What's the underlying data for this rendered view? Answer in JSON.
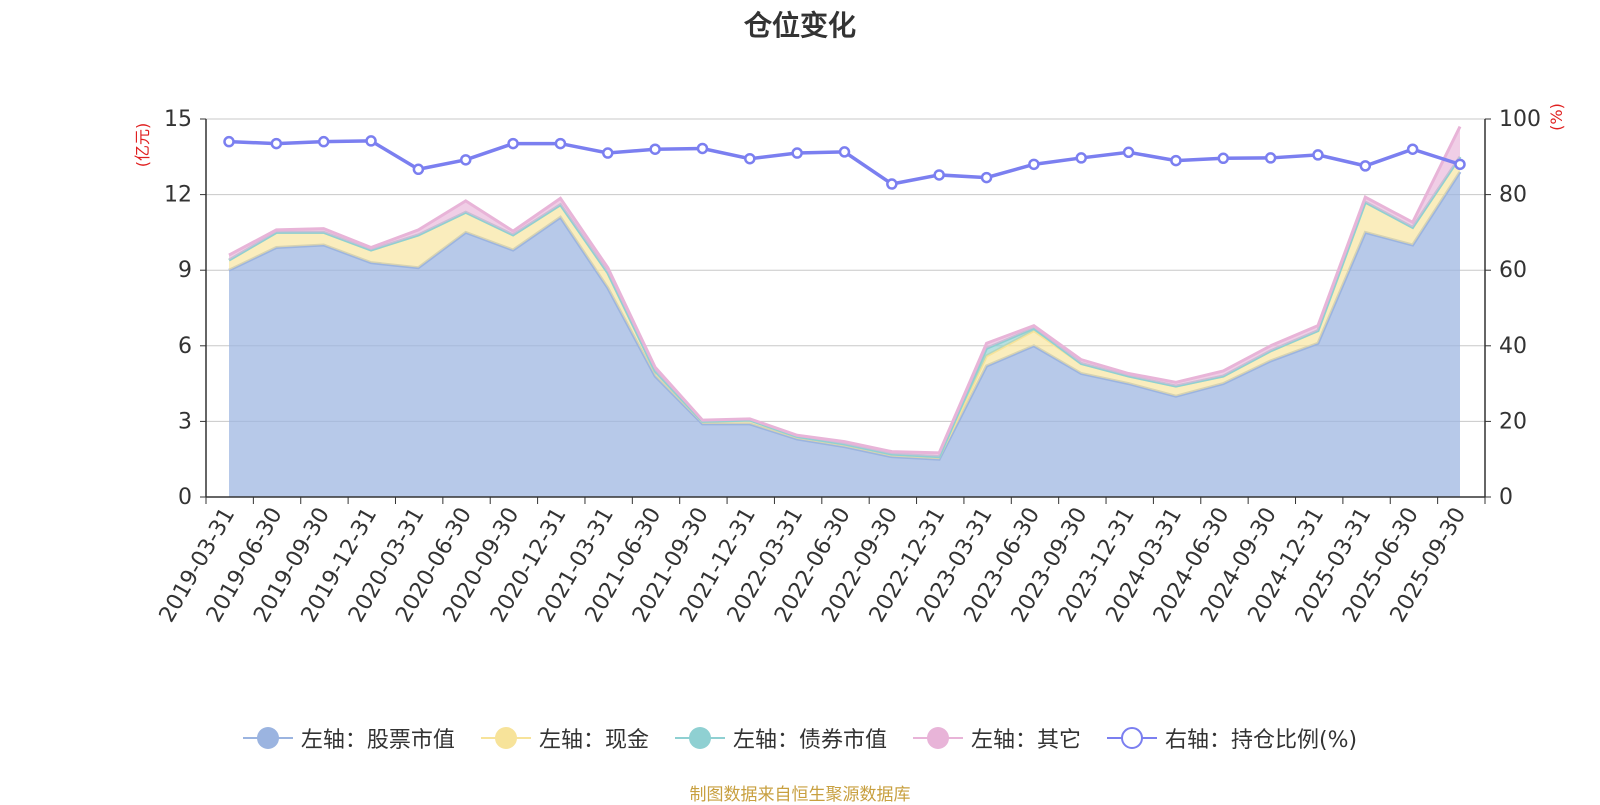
{
  "chart_data": {
    "type": "area",
    "title": "仓位变化",
    "y_left_unit": "(亿元)",
    "y_right_unit": "(%)",
    "y_left_lim": [
      0,
      15
    ],
    "y_left_ticks": [
      "0",
      "3",
      "6",
      "9",
      "12",
      "15"
    ],
    "y_right_lim": [
      0,
      100
    ],
    "y_right_ticks": [
      "0",
      "20",
      "40",
      "60",
      "80",
      "100"
    ],
    "grid": true,
    "legend_position": "bottom",
    "categories": [
      "2019-03-31",
      "2019-06-30",
      "2019-09-30",
      "2019-12-31",
      "2020-03-31",
      "2020-06-30",
      "2020-09-30",
      "2020-12-31",
      "2021-03-31",
      "2021-06-30",
      "2021-09-30",
      "2021-12-31",
      "2022-03-31",
      "2022-06-30",
      "2022-09-30",
      "2022-12-31",
      "2023-03-31",
      "2023-06-30",
      "2023-09-30",
      "2023-12-31",
      "2024-03-31",
      "2024-06-30",
      "2024-09-30",
      "2024-12-31",
      "2025-03-31",
      "2025-06-30",
      "2025-09-30"
    ],
    "series": [
      {
        "name": "左轴：股票市值",
        "axis": "left",
        "kind": "stack",
        "color": "#9bb4e0",
        "values": [
          9.0,
          9.9,
          10.0,
          9.3,
          9.1,
          10.5,
          9.8,
          11.1,
          8.3,
          4.8,
          2.9,
          2.9,
          2.3,
          2.0,
          1.6,
          1.5,
          5.2,
          6.0,
          4.9,
          4.5,
          4.0,
          4.5,
          5.4,
          6.1,
          10.5,
          10.0,
          12.9
        ]
      },
      {
        "name": "左轴：现金",
        "axis": "left",
        "kind": "stack",
        "color": "#f7e39a",
        "values": [
          0.4,
          0.6,
          0.5,
          0.5,
          1.3,
          0.8,
          0.6,
          0.5,
          0.6,
          0.2,
          0.1,
          0.15,
          0.1,
          0.1,
          0.1,
          0.1,
          0.4,
          0.6,
          0.4,
          0.3,
          0.4,
          0.3,
          0.4,
          0.5,
          1.2,
          0.7,
          0.6
        ]
      },
      {
        "name": "左轴：债券市值",
        "axis": "left",
        "kind": "stack",
        "color": "#8fd0d2",
        "values": [
          0,
          0,
          0,
          0,
          0,
          0,
          0,
          0,
          0,
          0,
          0,
          0,
          0,
          0,
          0,
          0,
          0.3,
          0.1,
          0,
          0,
          0,
          0,
          0,
          0,
          0,
          0,
          0
        ]
      },
      {
        "name": "左轴：其它",
        "axis": "left",
        "kind": "stack",
        "color": "#e8b4d8",
        "values": [
          0.2,
          0.1,
          0.15,
          0.1,
          0.2,
          0.45,
          0.15,
          0.25,
          0.2,
          0.15,
          0.05,
          0.05,
          0.05,
          0.1,
          0.1,
          0.15,
          0.2,
          0.1,
          0.15,
          0.1,
          0.15,
          0.2,
          0.2,
          0.2,
          0.2,
          0.2,
          1.2
        ]
      },
      {
        "name": "右轴：持仓比例(%)",
        "axis": "right",
        "kind": "line",
        "color": "#7b7ff0",
        "values": [
          94.0,
          93.5,
          94.0,
          94.2,
          86.7,
          89.2,
          93.5,
          93.5,
          91.0,
          92.0,
          92.2,
          89.5,
          91.0,
          91.3,
          82.8,
          85.2,
          84.5,
          88.0,
          89.7,
          91.2,
          89.0,
          89.6,
          89.7,
          90.5,
          87.6,
          92.0,
          88.0
        ]
      }
    ]
  },
  "source_note": "制图数据来自恒生聚源数据库"
}
